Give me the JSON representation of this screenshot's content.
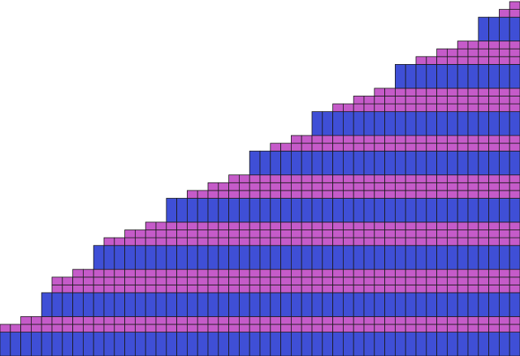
{
  "board": {
    "name": "stacked-block-grid",
    "column_count": 50,
    "colors": {
      "background": "#ffffff",
      "block_blue": "#3f4fd6",
      "block_pink": "#c55bc9",
      "grid_line": "#1a1a1a"
    },
    "row_pattern_bottom_to_top": [
      "blue",
      "pink",
      "pink",
      "blue",
      "pink",
      "pink",
      "pink",
      "blue",
      "pink",
      "pink",
      "pink",
      "blue",
      "pink",
      "pink",
      "pink",
      "blue",
      "pink",
      "pink",
      "blue",
      "pink",
      "pink",
      "pink",
      "blue",
      "pink",
      "pink",
      "pink",
      "blue",
      "pink",
      "pink",
      "pink",
      "blue",
      "pink"
    ],
    "column_heights": [
      2,
      2,
      3,
      3,
      4,
      6,
      6,
      7,
      7,
      8,
      9,
      9,
      10,
      10,
      11,
      11,
      12,
      12,
      13,
      13,
      14,
      14,
      15,
      15,
      16,
      16,
      17,
      17,
      18,
      18,
      19,
      19,
      20,
      20,
      21,
      21,
      22,
      22,
      23,
      23,
      24,
      24,
      25,
      25,
      26,
      26,
      27,
      27,
      28,
      29
    ]
  }
}
